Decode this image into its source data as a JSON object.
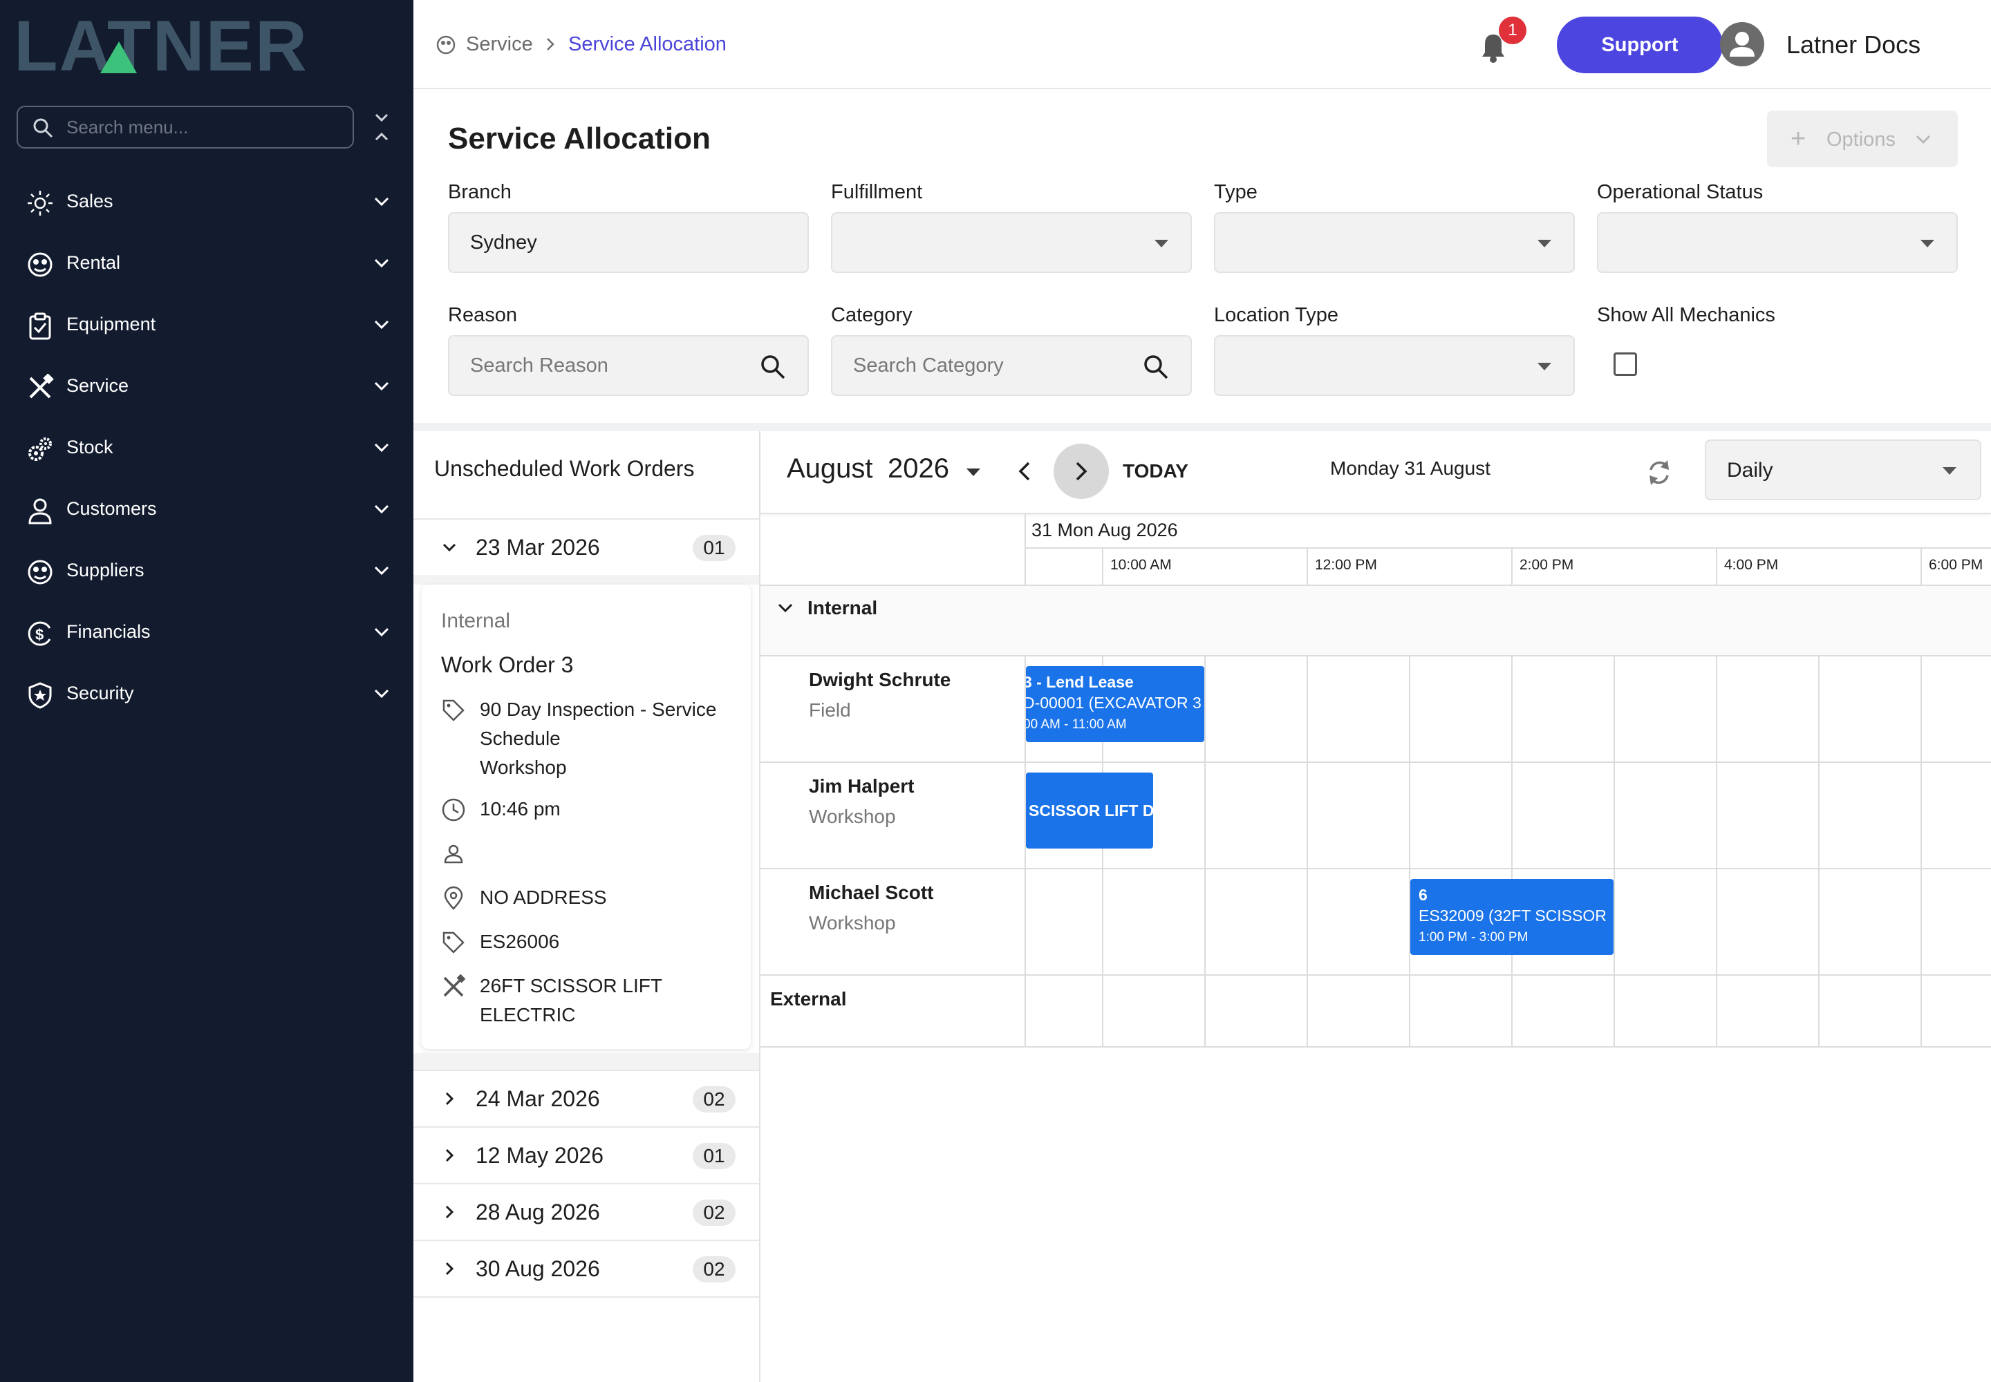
{
  "brand": {
    "name": "LATNER"
  },
  "sidebar": {
    "search_placeholder": "Search menu...",
    "items": [
      {
        "label": "Sales",
        "icon": "sales-icon"
      },
      {
        "label": "Rental",
        "icon": "rental-icon"
      },
      {
        "label": "Equipment",
        "icon": "clipboard-icon"
      },
      {
        "label": "Service",
        "icon": "tools-icon"
      },
      {
        "label": "Stock",
        "icon": "gears-icon"
      },
      {
        "label": "Customers",
        "icon": "person-icon"
      },
      {
        "label": "Suppliers",
        "icon": "supplier-icon"
      },
      {
        "label": "Financials",
        "icon": "dollar-icon"
      },
      {
        "label": "Security",
        "icon": "shield-icon"
      }
    ]
  },
  "header": {
    "breadcrumb": [
      "Service",
      "Service Allocation"
    ],
    "notification_count": "1",
    "support_label": "Support",
    "user_name": "Latner Docs"
  },
  "page": {
    "title": "Service Allocation",
    "options_label": "Options"
  },
  "filters": {
    "branch": {
      "label": "Branch",
      "value": "Sydney"
    },
    "fulfillment": {
      "label": "Fulfillment",
      "value": ""
    },
    "type": {
      "label": "Type",
      "value": ""
    },
    "operational_status": {
      "label": "Operational Status",
      "value": ""
    },
    "reason": {
      "label": "Reason",
      "placeholder": "Search Reason"
    },
    "category": {
      "label": "Category",
      "placeholder": "Search Category"
    },
    "location_type": {
      "label": "Location Type",
      "value": ""
    },
    "show_all_mechanics": {
      "label": "Show All Mechanics",
      "checked": false
    }
  },
  "unscheduled": {
    "title": "Unscheduled Work Orders",
    "groups": [
      {
        "date": "23 Mar 2026",
        "count": "01",
        "expanded": true
      },
      {
        "date": "24 Mar 2026",
        "count": "02",
        "expanded": false
      },
      {
        "date": "12 May 2026",
        "count": "01",
        "expanded": false
      },
      {
        "date": "28 Aug 2026",
        "count": "02",
        "expanded": false
      },
      {
        "date": "30 Aug 2026",
        "count": "02",
        "expanded": false
      }
    ],
    "card": {
      "category": "Internal",
      "name": "Work Order 3",
      "inspection_line1": "90 Day Inspection - Service",
      "inspection_line2": "Schedule",
      "inspection_line3": "Workshop",
      "time": "10:46 pm",
      "assignee": "",
      "address": "NO ADDRESS",
      "asset_code": "ES26006",
      "asset_line1": "26FT SCISSOR LIFT",
      "asset_line2": "ELECTRIC"
    }
  },
  "calendar": {
    "month": "August",
    "year": "2026",
    "today_label": "TODAY",
    "date_label": "Monday 31 August",
    "view": "Daily",
    "day_header": "31 Mon Aug 2026",
    "time_labels": [
      "10:00 AM",
      "12:00 PM",
      "2:00 PM",
      "4:00 PM",
      "6:00 PM"
    ],
    "groups": {
      "internal": "Internal",
      "external": "External"
    },
    "resources": [
      {
        "name": "Dwight Schrute",
        "sub": "Field"
      },
      {
        "name": "Jim Halpert",
        "sub": "Workshop"
      },
      {
        "name": "Michael Scott",
        "sub": "Workshop"
      }
    ],
    "events": [
      {
        "l1": "3 - Lend Lease",
        "l2": "D-00001 (EXCAVATOR 3",
        "l3": "00 AM - 11:00 AM"
      },
      {
        "l1": "",
        "l2": "SCISSOR LIFT DI",
        "l3": ""
      },
      {
        "l1": "6",
        "l2": "ES32009 (32FT SCISSOR",
        "l3": "1:00 PM - 3:00 PM"
      }
    ]
  },
  "colors": {
    "sidebar_bg": "#131b2e",
    "accent": "#4d45e0",
    "event": "#1a73e8",
    "badge": "#e0303a"
  }
}
